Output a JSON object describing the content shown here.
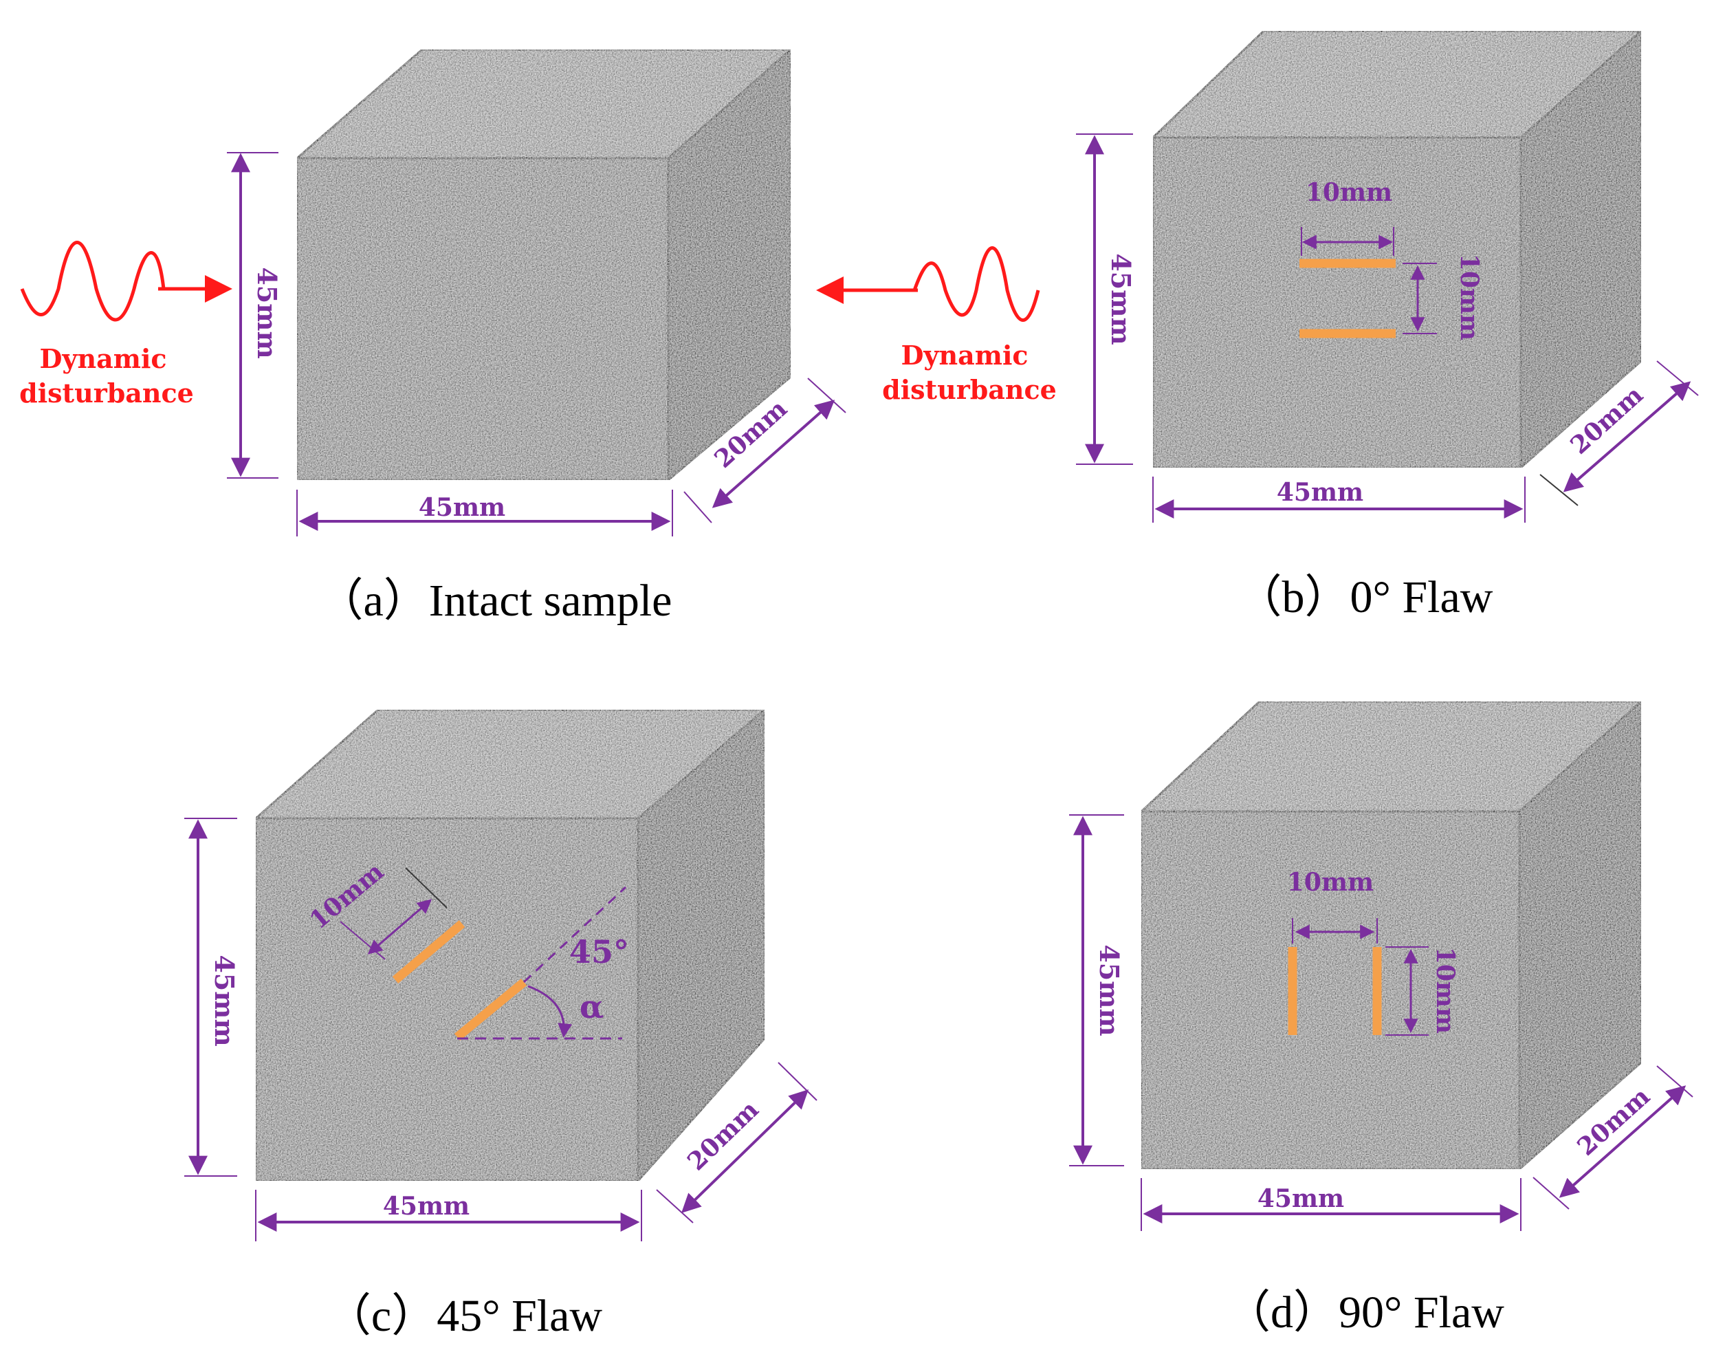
{
  "colors": {
    "dimension": "#7b2f9e",
    "flaw": "#f5a04a",
    "disturbance": "#ff1a1a",
    "front_face": "#9c9c9c",
    "top_face": "#b4b4b4",
    "side_face": "#7a7a7a",
    "edge": "#3a3a3a"
  },
  "panels": [
    {
      "caption": "（a）Intact sample",
      "height_label": "45mm",
      "width_label": "45mm",
      "depth_label": "20mm"
    },
    {
      "caption": "（b）0°  Flaw",
      "height_label": "45mm",
      "width_label": "45mm",
      "depth_label": "20mm",
      "flaw_length_label": "10mm",
      "flaw_spacing_label": "10mm"
    },
    {
      "caption": "（c）45°  Flaw",
      "height_label": "45mm",
      "width_label": "45mm",
      "depth_label": "20mm",
      "flaw_length_label": "10mm",
      "angle_label": "45°",
      "angle_symbol": "α"
    },
    {
      "caption": "（d）90°  Flaw",
      "height_label": "45mm",
      "width_label": "45mm",
      "depth_label": "20mm",
      "flaw_length_label": "10mm",
      "flaw_spacing_label": "10mm"
    }
  ],
  "disturbance": {
    "left_line1": "Dynamic",
    "left_line2": "disturbance",
    "right_line1": "Dynamic",
    "right_line2": "disturbance"
  }
}
